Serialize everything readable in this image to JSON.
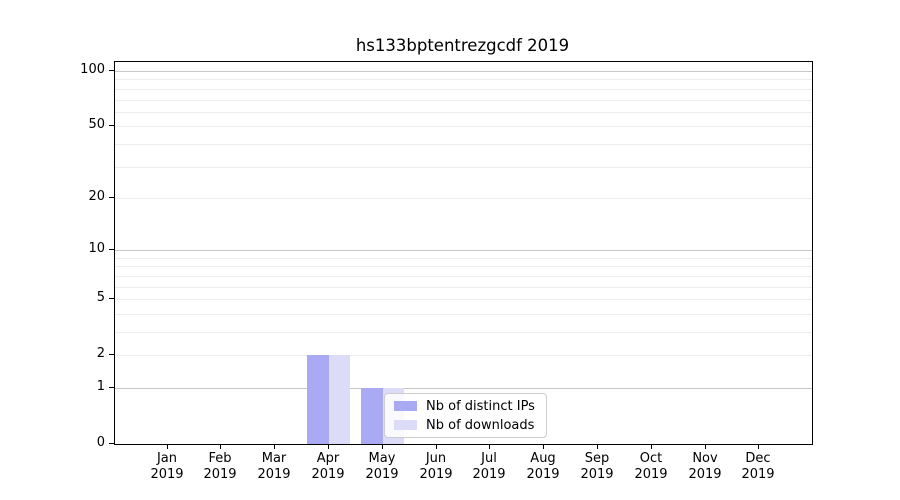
{
  "title": "hs133bptentrezgcdf 2019",
  "chart_data": {
    "type": "bar",
    "title": "hs133bptentrezgcdf 2019",
    "categories": [
      "Jan",
      "Feb",
      "Mar",
      "Apr",
      "May",
      "Jun",
      "Jul",
      "Aug",
      "Sep",
      "Oct",
      "Nov",
      "Dec"
    ],
    "year": "2019",
    "series": [
      {
        "name": "Nb of distinct IPs",
        "color": "#a9a9f4",
        "values": [
          0,
          0,
          0,
          2,
          1,
          0,
          0,
          0,
          0,
          0,
          0,
          0
        ]
      },
      {
        "name": "Nb of downloads",
        "color": "#dcdcf8",
        "values": [
          0,
          0,
          0,
          2,
          1,
          0,
          0,
          0,
          0,
          0,
          0,
          0
        ]
      }
    ],
    "xlabel": "",
    "ylabel": "",
    "yscale": "log1p",
    "ylim": [
      0,
      112
    ],
    "yticks": [
      0,
      1,
      2,
      5,
      10,
      20,
      50,
      100
    ],
    "major_gridlines": [
      1,
      10,
      100
    ],
    "minor_gridlines": [
      2,
      3,
      4,
      5,
      6,
      7,
      8,
      9,
      20,
      30,
      40,
      50,
      60,
      70,
      80,
      90
    ],
    "grid": "horizontal",
    "legend_position": "lower-center-inside"
  },
  "legend": {
    "items": [
      {
        "label": "Nb of distinct IPs",
        "color": "#a9a9f4"
      },
      {
        "label": "Nb of downloads",
        "color": "#dcdcf8"
      }
    ]
  },
  "colors": {
    "major_grid": "#c6c6c6",
    "minor_grid": "#ededed",
    "axis": "#000000",
    "background": "#ffffff"
  }
}
